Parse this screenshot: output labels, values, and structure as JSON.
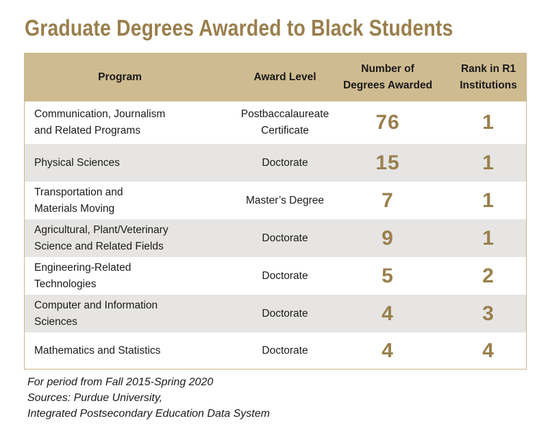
{
  "chart_data": {
    "type": "table",
    "title": "Graduate Degrees Awarded to Black Students",
    "columns": [
      "Program",
      "Award Level",
      "Number of\nDegrees Awarded",
      "Rank in R1\nInstitutions"
    ],
    "rows": [
      {
        "program": "Communication, Journalism\nand Related Programs",
        "level": "Postbaccalaureate\nCertificate",
        "degrees": 76,
        "rank": 1
      },
      {
        "program": "Physical Sciences",
        "level": "Doctorate",
        "degrees": 15,
        "rank": 1
      },
      {
        "program": "Transportation and\nMaterials Moving",
        "level": "Master’s Degree",
        "degrees": 7,
        "rank": 1
      },
      {
        "program": "Agricultural, Plant/Veterinary\nScience and Related Fields",
        "level": "Doctorate",
        "degrees": 9,
        "rank": 1
      },
      {
        "program": "Engineering-Related\nTechnologies",
        "level": "Doctorate",
        "degrees": 5,
        "rank": 2
      },
      {
        "program": "Computer and Information\nSciences",
        "level": "Doctorate",
        "degrees": 4,
        "rank": 3
      },
      {
        "program": "Mathematics and Statistics",
        "level": "Doctorate",
        "degrees": 4,
        "rank": 4
      }
    ],
    "colors": {
      "title": "#9a7f4d",
      "header_bg": "#cfbb90",
      "alt_row_bg": "#e6e5e3",
      "number_text": "#9a7f4d"
    }
  },
  "notes": [
    "For period from Fall 2015-Spring 2020",
    "Sources: Purdue University,",
    "Integrated Postsecondary Education Data System"
  ]
}
